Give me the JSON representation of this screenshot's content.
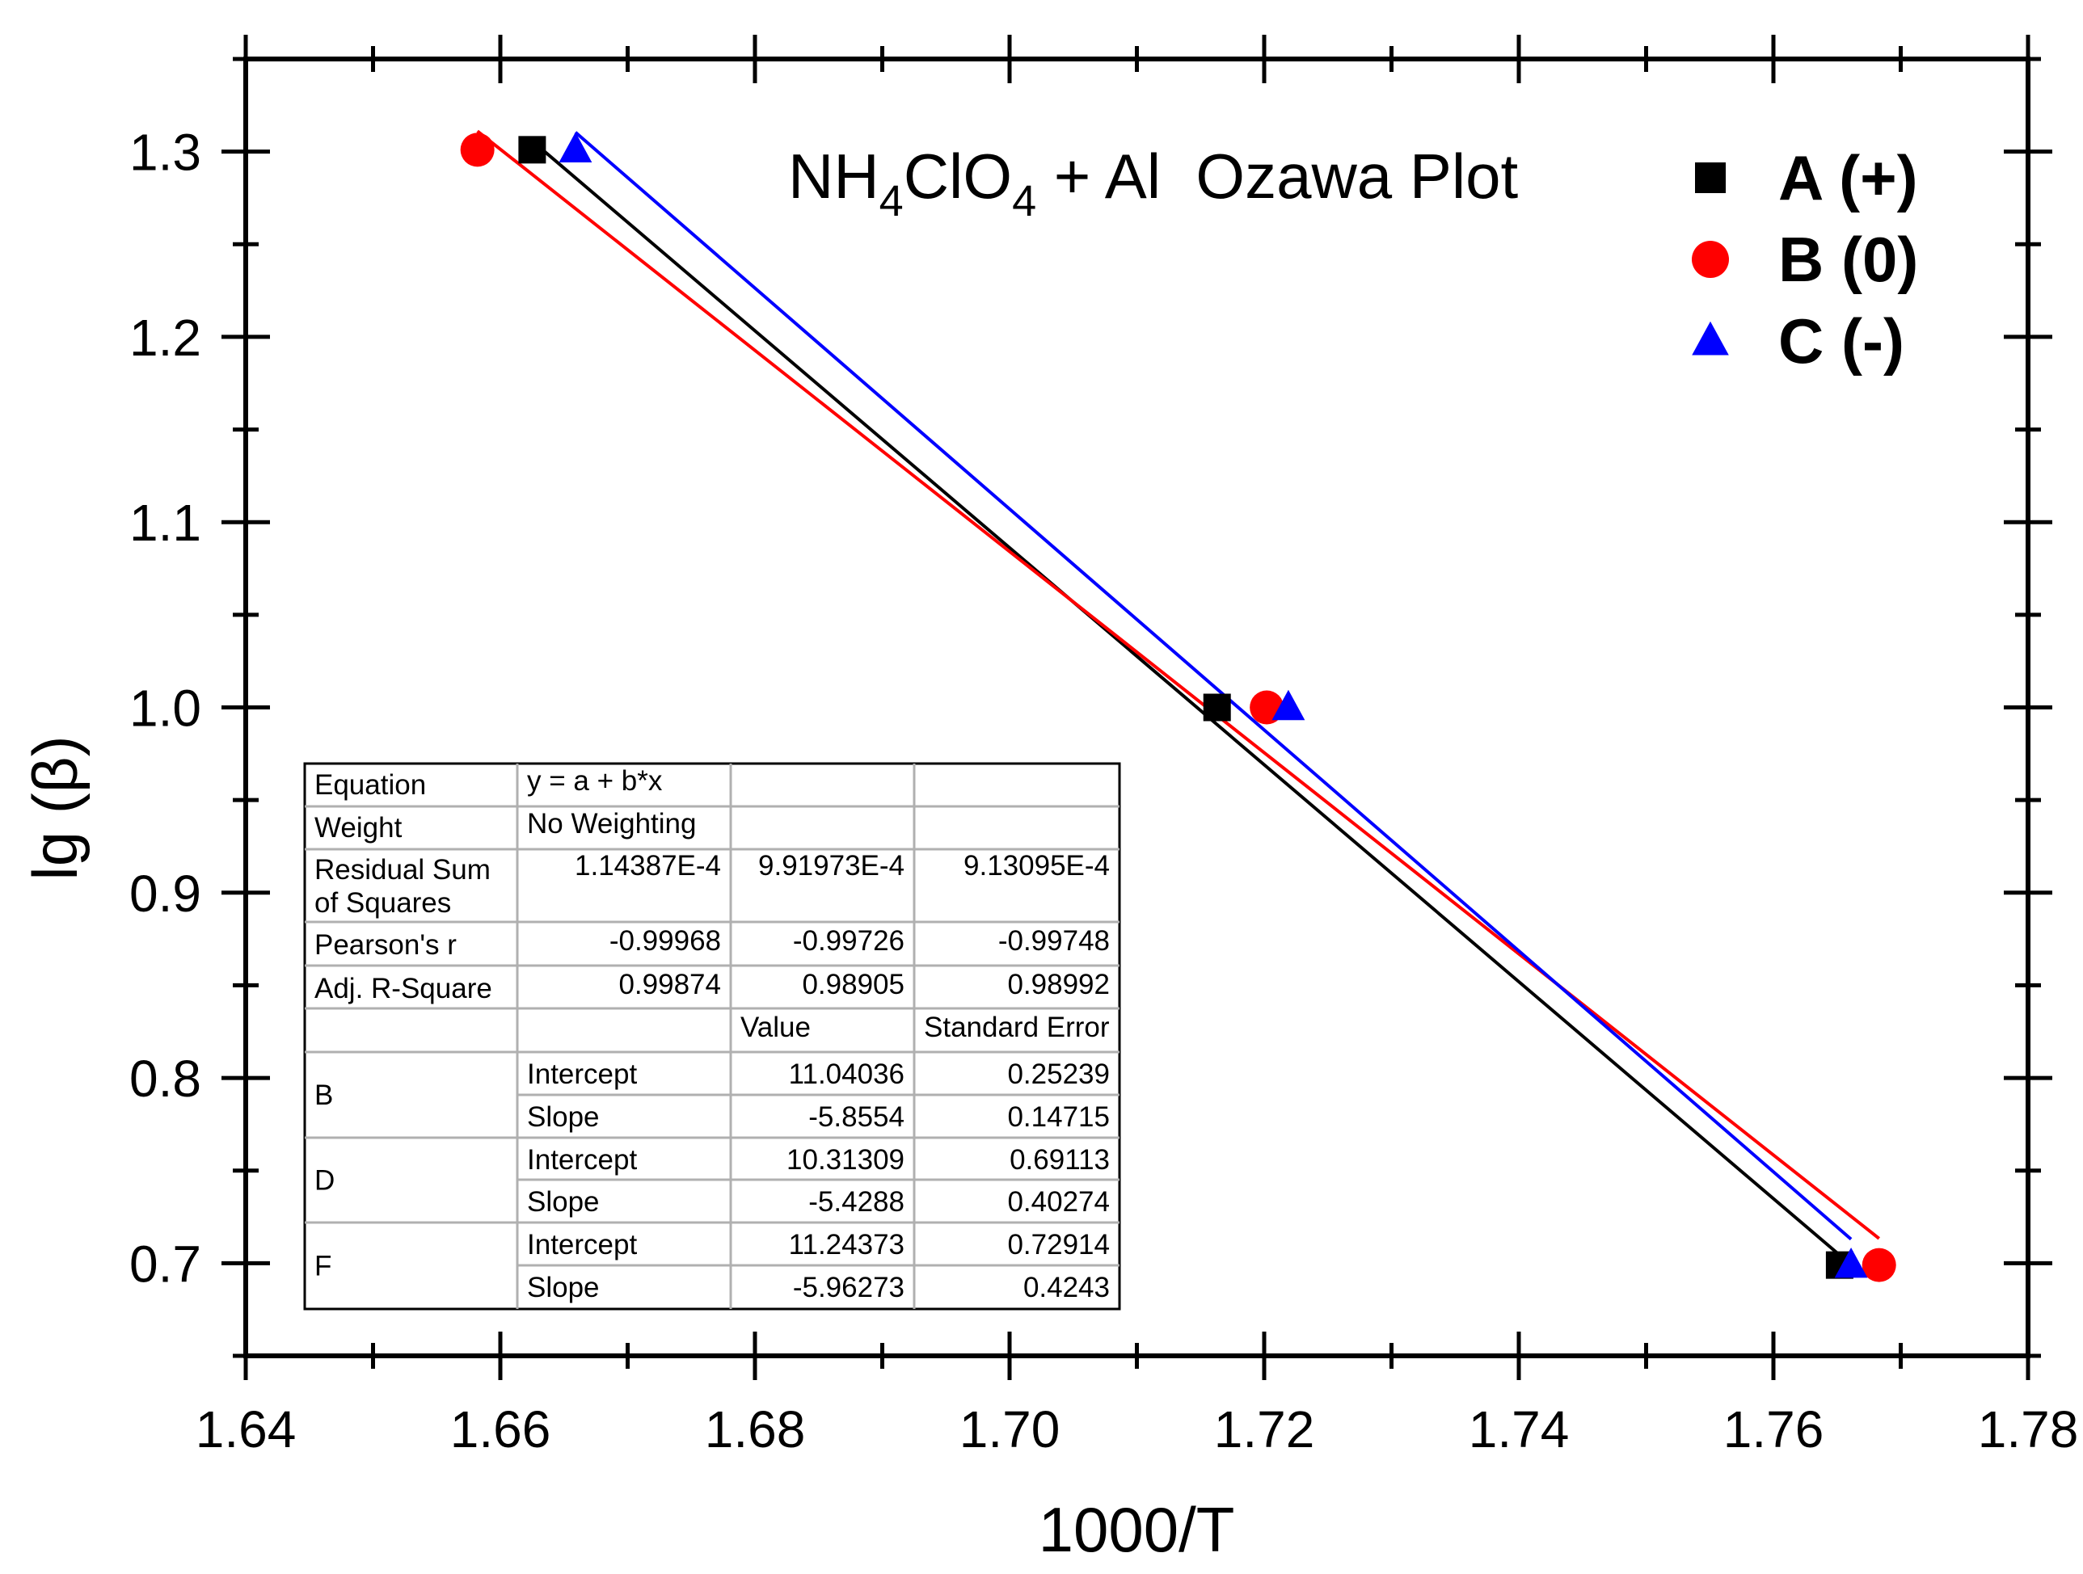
{
  "chart_data": {
    "type": "scatter",
    "title": "NH4ClO4 + Al  Ozawa Plot",
    "title_parts": [
      "NH",
      "4",
      "ClO",
      "4",
      " + Al  Ozawa Plot"
    ],
    "xlabel": "1000/T",
    "ylabel": "lg (β)",
    "xlim": [
      1.64,
      1.78
    ],
    "ylim": [
      0.65,
      1.35
    ],
    "x_ticks": [
      1.64,
      1.66,
      1.68,
      1.7,
      1.72,
      1.74,
      1.76,
      1.78
    ],
    "x_tick_labels": [
      "1.64",
      "1.66",
      "1.68",
      "1.70",
      "1.72",
      "1.74",
      "1.76",
      "1.78"
    ],
    "y_ticks": [
      0.7,
      0.8,
      0.9,
      1.0,
      1.1,
      1.2,
      1.3
    ],
    "y_tick_labels": [
      "0.7",
      "0.8",
      "0.9",
      "1.0",
      "1.1",
      "1.2",
      "1.3"
    ],
    "legend_position": "top-right",
    "series": [
      {
        "name": "A (+)",
        "marker": "square",
        "color": "#000000",
        "x": [
          1.6625,
          1.7163,
          1.7652
        ],
        "y": [
          1.301,
          1.0,
          0.699
        ],
        "fit": {
          "intercept": 11.04036,
          "slope": -5.8554,
          "x_range": [
            1.6625,
            1.7652
          ]
        }
      },
      {
        "name": "B (0)",
        "marker": "circle",
        "color": "#ff0000",
        "x": [
          1.6582,
          1.7202,
          1.7683
        ],
        "y": [
          1.301,
          1.0,
          0.699
        ],
        "fit": {
          "intercept": 10.31309,
          "slope": -5.4288,
          "x_range": [
            1.6582,
            1.7683
          ]
        }
      },
      {
        "name": "C (-)",
        "marker": "triangle",
        "color": "#0000ff",
        "x": [
          1.6659,
          1.7219,
          1.7661
        ],
        "y": [
          1.301,
          1.0,
          0.699
        ],
        "fit": {
          "intercept": 11.24373,
          "slope": -5.96273,
          "x_range": [
            1.6659,
            1.7661
          ]
        }
      }
    ],
    "fit_table": {
      "rows": [
        [
          "Equation",
          "",
          "y = a + b*x",
          "",
          ""
        ],
        [
          "Weight",
          "",
          "No Weighting",
          "",
          ""
        ],
        [
          "Residual Sum of Squares",
          "",
          "1.14387E-4",
          "9.91973E-4",
          "9.13095E-4"
        ],
        [
          "Pearson's r",
          "",
          "-0.99968",
          "-0.99726",
          "-0.99748"
        ],
        [
          "Adj. R-Square",
          "",
          "0.99874",
          "0.98905",
          "0.98992"
        ],
        [
          "",
          "",
          "",
          "Value",
          "Standard Error"
        ],
        [
          "B",
          "Intercept",
          "",
          "11.04036",
          "0.25239"
        ],
        [
          "",
          "Slope",
          "",
          "-5.8554",
          "0.14715"
        ],
        [
          "D",
          "Intercept",
          "",
          "10.31309",
          "0.69113"
        ],
        [
          "",
          "Slope",
          "",
          "-5.4288",
          "0.40274"
        ],
        [
          "F",
          "Intercept",
          "",
          "11.24373",
          "0.72914"
        ],
        [
          "",
          "Slope",
          "",
          "-5.96273",
          "0.4243"
        ]
      ],
      "header": {
        "equation_label": "Equation",
        "equation": "y = a + b*x",
        "weight_label": "Weight",
        "weight": "No Weighting",
        "rss_label": [
          "Residual Sum",
          "of Squares"
        ],
        "rss": [
          "1.14387E-4",
          "9.91973E-4",
          "9.13095E-4"
        ],
        "pearson_label": "Pearson's r",
        "pearson": [
          "-0.99968",
          "-0.99726",
          "-0.99748"
        ],
        "adjr_label": "Adj. R-Square",
        "adjr": [
          "0.99874",
          "0.98905",
          "0.98992"
        ],
        "value_label": "Value",
        "stderr_label": "Standard Error"
      },
      "params": [
        {
          "group": "B",
          "rows": [
            {
              "name": "Intercept",
              "value": "11.04036",
              "stderr": "0.25239"
            },
            {
              "name": "Slope",
              "value": "-5.8554",
              "stderr": "0.14715"
            }
          ]
        },
        {
          "group": "D",
          "rows": [
            {
              "name": "Intercept",
              "value": "10.31309",
              "stderr": "0.69113"
            },
            {
              "name": "Slope",
              "value": "-5.4288",
              "stderr": "0.40274"
            }
          ]
        },
        {
          "group": "F",
          "rows": [
            {
              "name": "Intercept",
              "value": "11.24373",
              "stderr": "0.72914"
            },
            {
              "name": "Slope",
              "value": "-5.96273",
              "stderr": "0.4243"
            }
          ]
        }
      ]
    }
  }
}
